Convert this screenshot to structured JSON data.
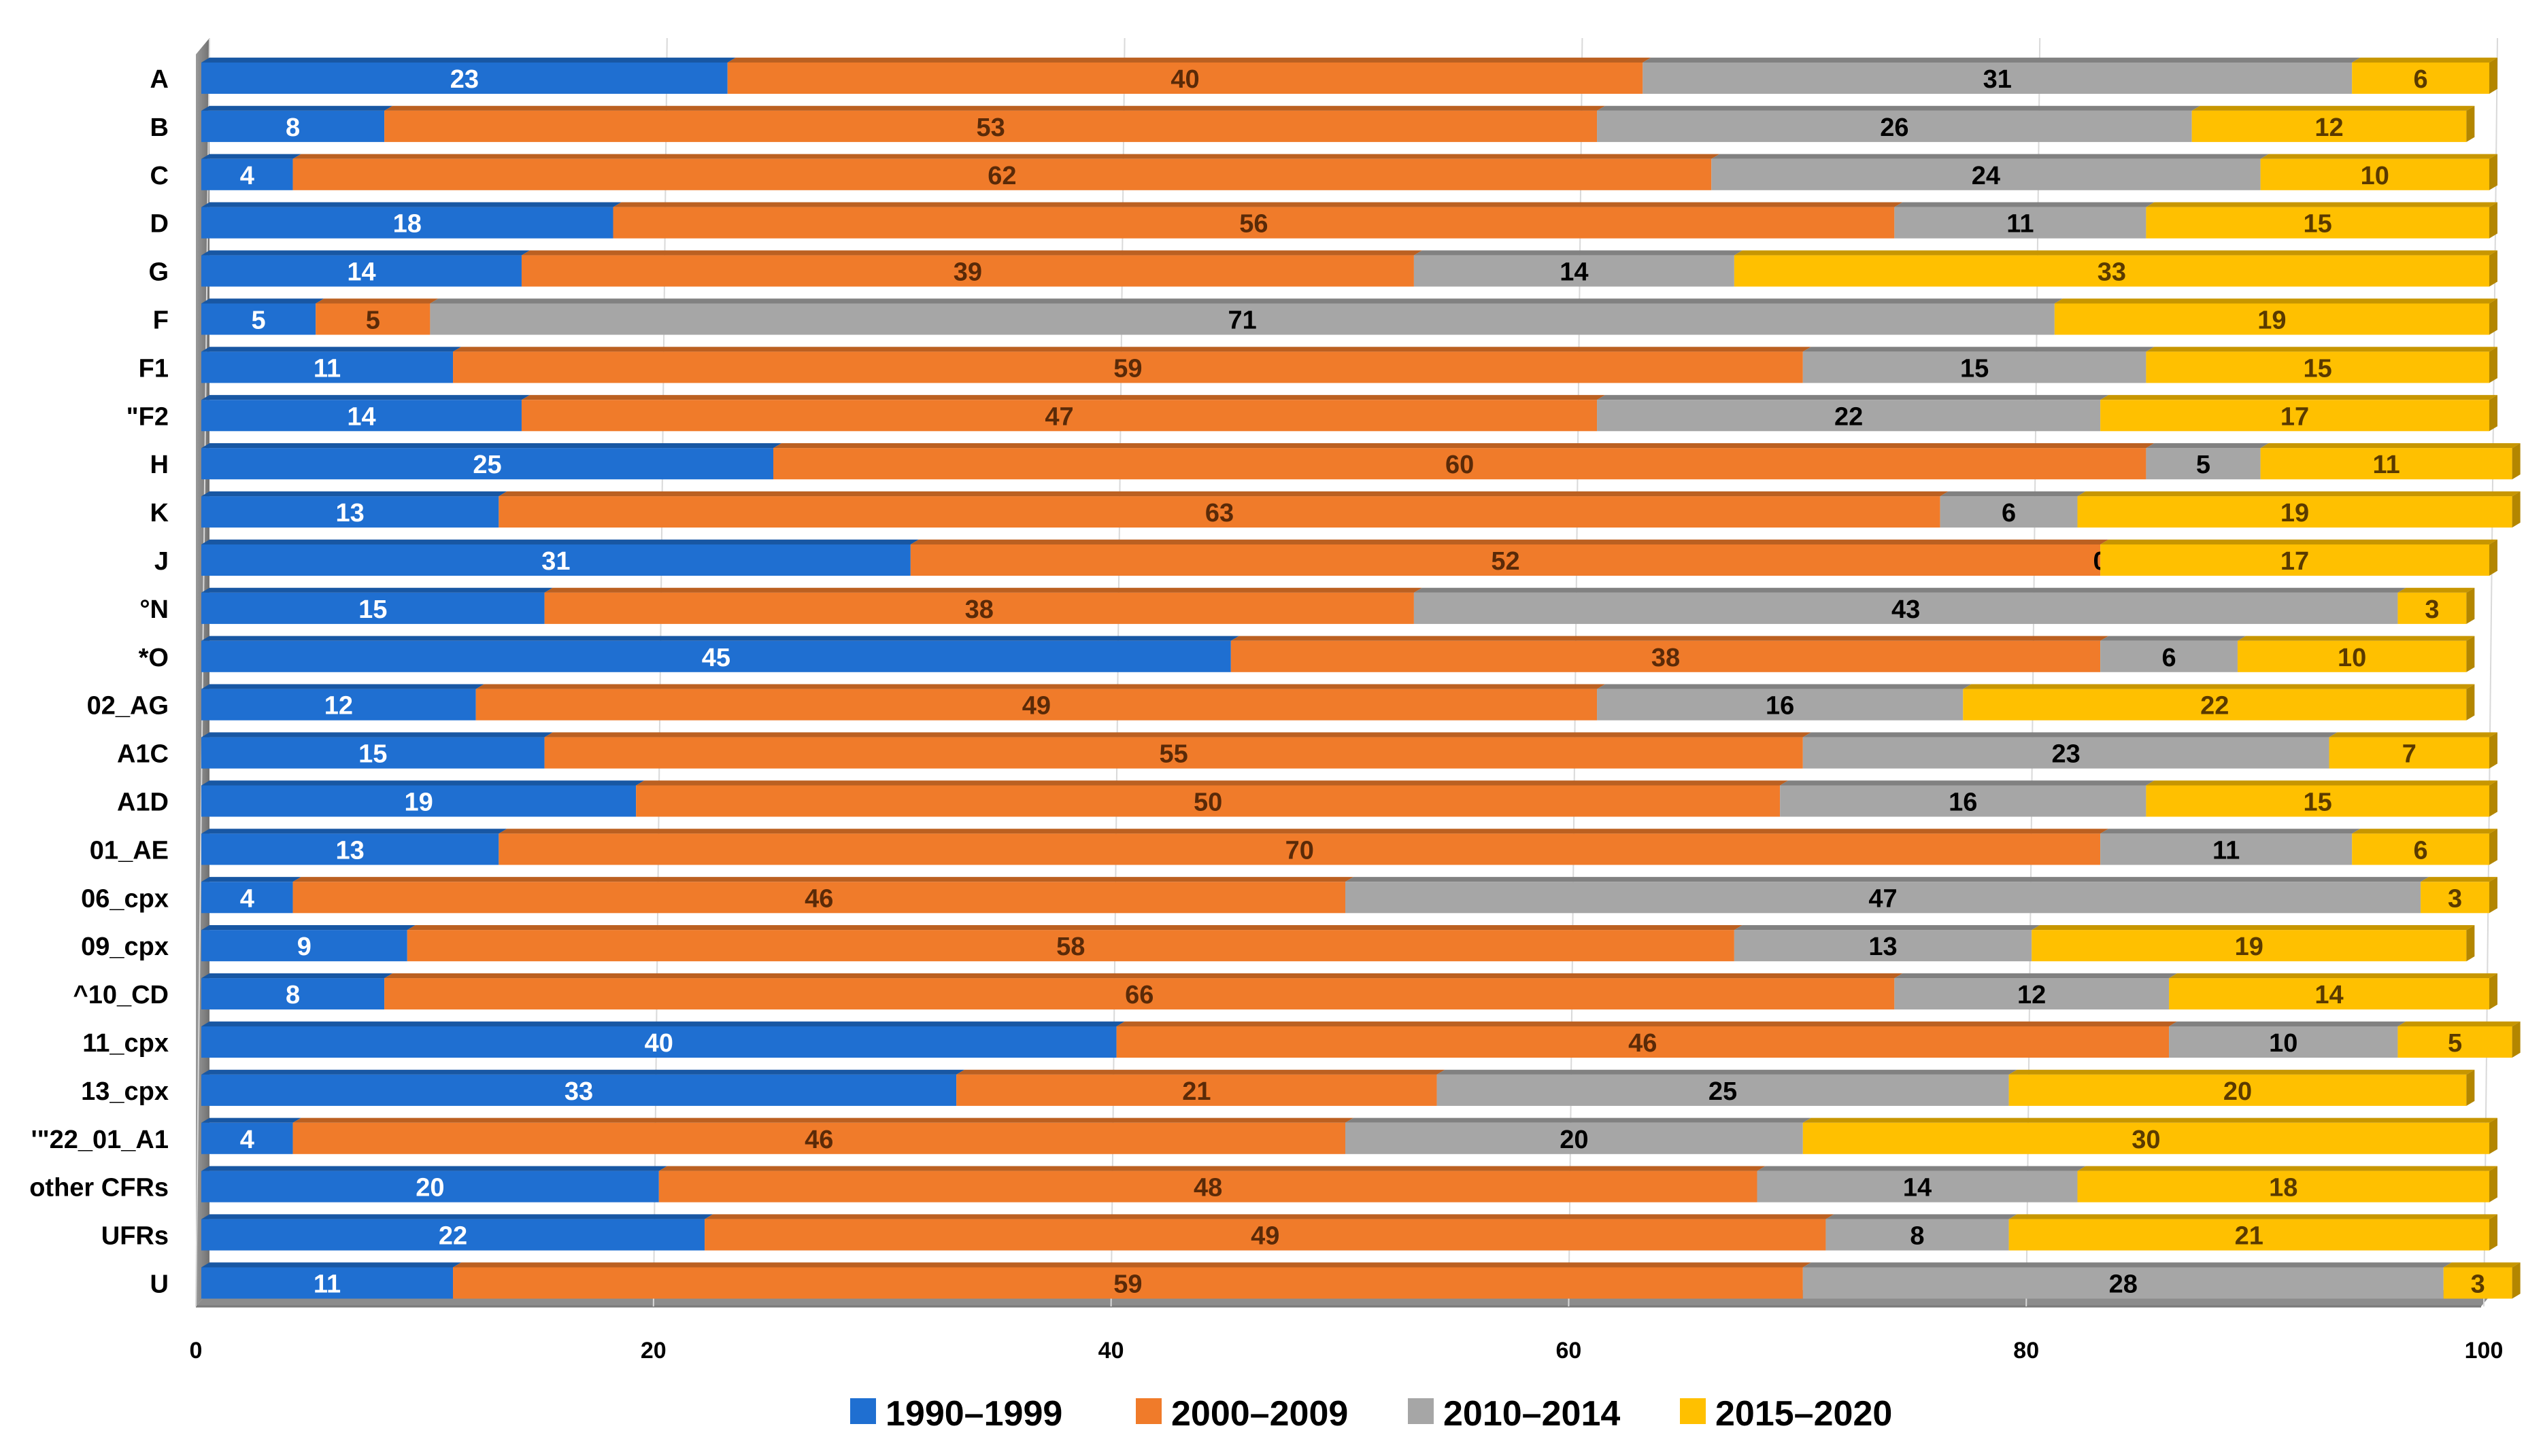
{
  "chart_data": {
    "type": "bar",
    "orientation": "horizontal",
    "stacked": true,
    "xlim": [
      0,
      100
    ],
    "xticks": [
      "0",
      "20",
      "40",
      "60",
      "80",
      "100"
    ],
    "categories": [
      "A",
      "B",
      "C",
      "D",
      "G",
      "F",
      "F1",
      "\"F2",
      "H",
      "K",
      "J",
      "°N",
      "*O",
      "02_AG",
      "A1C",
      "A1D",
      "01_AE",
      "06_cpx",
      "09_cpx",
      "^10_CD",
      "11_cpx",
      "13_cpx",
      "'\"22_01_A1",
      "other CFRs",
      "UFRs",
      "U"
    ],
    "series": [
      {
        "name": "1990–1999",
        "color": "#1f6fd1",
        "label_color": "#ffffff",
        "values": [
          23,
          8,
          4,
          18,
          14,
          5,
          11,
          14,
          25,
          13,
          31,
          15,
          45,
          12,
          15,
          19,
          13,
          4,
          9,
          8,
          40,
          33,
          4,
          20,
          22,
          11
        ]
      },
      {
        "name": "2000–2009",
        "color": "#f07b2a",
        "label_color": "#5a2a08",
        "values": [
          40,
          53,
          62,
          56,
          39,
          5,
          59,
          47,
          60,
          63,
          52,
          38,
          38,
          49,
          55,
          50,
          70,
          46,
          58,
          66,
          46,
          21,
          46,
          48,
          49,
          59
        ]
      },
      {
        "name": "2010–2014",
        "color": "#a6a6a6",
        "label_color": "#000000",
        "values": [
          31,
          26,
          24,
          11,
          14,
          71,
          15,
          22,
          5,
          6,
          0,
          43,
          6,
          16,
          23,
          16,
          11,
          47,
          13,
          12,
          10,
          25,
          20,
          14,
          8,
          28
        ]
      },
      {
        "name": "2015–2020",
        "color": "#ffc000",
        "label_color": "#5a3a00",
        "values": [
          6,
          12,
          10,
          15,
          33,
          19,
          15,
          17,
          11,
          19,
          17,
          3,
          10,
          22,
          7,
          15,
          6,
          3,
          19,
          14,
          5,
          20,
          30,
          18,
          21,
          3
        ]
      }
    ],
    "title": "",
    "xlabel": "",
    "ylabel": "",
    "grid": true,
    "legend": "bottom-center"
  }
}
